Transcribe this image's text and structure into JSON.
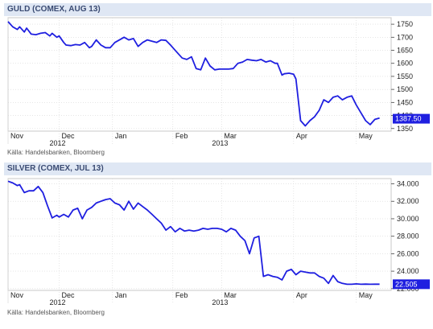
{
  "chart_data": [
    {
      "type": "line",
      "title": "GULD (COMEX, AUG 13)",
      "source": "Källa: Handelsbanken, Bloomberg",
      "ylim": [
        1340,
        1775
      ],
      "yticks": [
        "1750",
        "1700",
        "1650",
        "1600",
        "1550",
        "1500",
        "1450",
        "1400",
        "1350"
      ],
      "ytick_values": [
        1750,
        1700,
        1650,
        1600,
        1550,
        1500,
        1450,
        1400,
        1350
      ],
      "last_value": 1387.5,
      "last_label": "1387.50",
      "x_labels": [
        "Nov",
        "Dec",
        "Jan",
        "Feb",
        "Mar",
        "Apr",
        "May"
      ],
      "x_label_pos": [
        0,
        22,
        45,
        71,
        92,
        123,
        150
      ],
      "year_labels": [
        "2012",
        "2013"
      ],
      "year_label_pos": [
        22,
        92
      ],
      "xlim": [
        0,
        165
      ],
      "grid": true,
      "color": "#1f1fe0",
      "series": [
        {
          "x": [
            0,
            2,
            4,
            5,
            7,
            8,
            10,
            12,
            14,
            16,
            18,
            19,
            21,
            22,
            24,
            25,
            27,
            29,
            31,
            33,
            35,
            36,
            38,
            40,
            42,
            44,
            46,
            48,
            50,
            52,
            54,
            56,
            58,
            60,
            62,
            64,
            66,
            68,
            70,
            71,
            73,
            75,
            77,
            79,
            81,
            83,
            85,
            87,
            89,
            91,
            93,
            95,
            97,
            99,
            101,
            103,
            105,
            107,
            109,
            111,
            113,
            115,
            116,
            118,
            119,
            121,
            123,
            124,
            126,
            128,
            130,
            132,
            134,
            136,
            138,
            140,
            142,
            144,
            146,
            148,
            150,
            152,
            154,
            156,
            158,
            160
          ],
          "y": [
            1760,
            1740,
            1730,
            1740,
            1720,
            1735,
            1712,
            1710,
            1715,
            1718,
            1705,
            1715,
            1700,
            1705,
            1680,
            1670,
            1668,
            1672,
            1670,
            1680,
            1660,
            1665,
            1690,
            1670,
            1660,
            1660,
            1680,
            1690,
            1700,
            1690,
            1695,
            1665,
            1680,
            1690,
            1685,
            1680,
            1690,
            1688,
            1670,
            1660,
            1640,
            1620,
            1615,
            1625,
            1580,
            1575,
            1620,
            1590,
            1575,
            1578,
            1578,
            1578,
            1580,
            1600,
            1605,
            1615,
            1612,
            1610,
            1615,
            1605,
            1610,
            1600,
            1600,
            1555,
            1560,
            1562,
            1558,
            1540,
            1380,
            1360,
            1380,
            1395,
            1420,
            1460,
            1450,
            1470,
            1475,
            1460,
            1470,
            1475,
            1440,
            1410,
            1380,
            1365,
            1385,
            1390
          ]
        }
      ]
    },
    {
      "type": "line",
      "title": "SILVER (COMEX, JUL 13)",
      "source": "Källa: Handelsbanken, Bloomberg",
      "ylim": [
        21.8,
        34.6
      ],
      "yticks": [
        "34.000",
        "32.000",
        "30.000",
        "28.000",
        "26.000",
        "24.000",
        "22.505",
        "22.000"
      ],
      "ytick_values": [
        34,
        32,
        30,
        28,
        26,
        24,
        22.505,
        22
      ],
      "last_value": 22.505,
      "last_label": "22.505",
      "x_labels": [
        "Nov",
        "Dec",
        "Jan",
        "Feb",
        "Mar",
        "Apr",
        "May"
      ],
      "x_label_pos": [
        0,
        22,
        45,
        71,
        92,
        123,
        150
      ],
      "year_labels": [
        "2012",
        "2013"
      ],
      "year_label_pos": [
        22,
        92
      ],
      "xlim": [
        0,
        165
      ],
      "grid": true,
      "color": "#1f1fe0",
      "series": [
        {
          "x": [
            0,
            2,
            4,
            5,
            7,
            9,
            11,
            13,
            15,
            17,
            19,
            21,
            22,
            24,
            26,
            28,
            30,
            32,
            34,
            36,
            38,
            40,
            42,
            44,
            46,
            48,
            50,
            52,
            54,
            56,
            58,
            60,
            62,
            64,
            66,
            68,
            70,
            72,
            74,
            76,
            78,
            80,
            82,
            84,
            86,
            88,
            90,
            92,
            94,
            96,
            98,
            100,
            102,
            104,
            106,
            108,
            110,
            112,
            114,
            116,
            118,
            120,
            122,
            124,
            126,
            128,
            130,
            132,
            134,
            136,
            138,
            140,
            142,
            144,
            146,
            148,
            150,
            152,
            154,
            156,
            158,
            160
          ],
          "y": [
            34.3,
            34.1,
            33.8,
            33.9,
            33.0,
            33.2,
            33.2,
            33.7,
            33.0,
            31.5,
            30.1,
            30.4,
            30.2,
            30.5,
            30.2,
            31.0,
            31.2,
            30.0,
            31.0,
            31.3,
            31.8,
            32.0,
            32.2,
            32.3,
            31.8,
            31.6,
            31.0,
            32.0,
            31.1,
            31.8,
            31.4,
            31.0,
            30.5,
            30.0,
            29.5,
            28.7,
            29.1,
            28.5,
            28.9,
            28.6,
            28.7,
            28.6,
            28.7,
            28.9,
            28.8,
            28.9,
            28.9,
            28.8,
            28.5,
            28.9,
            28.7,
            28.0,
            27.5,
            26.0,
            27.8,
            28.0,
            23.4,
            23.6,
            23.4,
            23.3,
            23.0,
            24.0,
            24.2,
            23.6,
            24.0,
            23.9,
            23.8,
            23.8,
            23.4,
            23.2,
            22.6,
            23.5,
            22.8,
            22.6,
            22.5,
            22.5,
            22.55,
            22.5,
            22.52,
            22.5,
            22.505,
            22.505
          ]
        }
      ]
    }
  ]
}
